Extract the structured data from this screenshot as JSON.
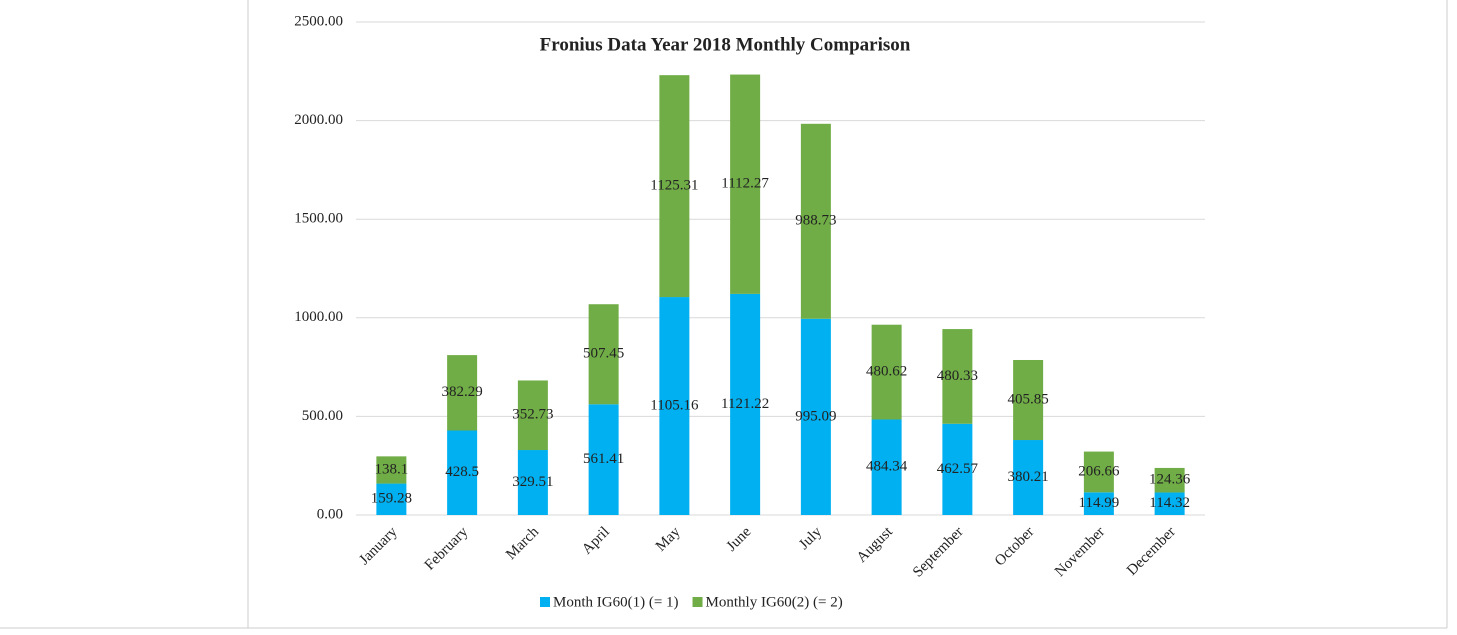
{
  "chart_data": {
    "type": "stacked_bar",
    "title": "Fronius Data Year 2018 Monthly Comparison",
    "categories": [
      "January",
      "February",
      "March",
      "April",
      "May",
      "June",
      "July",
      "August",
      "September",
      "October",
      "November",
      "December"
    ],
    "series": [
      {
        "name": "Month IG60(1) (= 1)",
        "color": "#00b0f0",
        "values": [
          159.28,
          428.5,
          329.51,
          561.41,
          1105.16,
          1121.22,
          995.09,
          484.34,
          462.57,
          380.21,
          114.99,
          114.32
        ]
      },
      {
        "name": "Monthly IG60(2) (= 2)",
        "color": "#70ad47",
        "values": [
          138.1,
          382.29,
          352.73,
          507.45,
          1125.31,
          1112.27,
          988.73,
          480.62,
          480.33,
          405.85,
          206.66,
          124.36
        ]
      }
    ],
    "ylim": [
      0,
      2500
    ],
    "yticks": [
      {
        "value": 0,
        "label": "0.00"
      },
      {
        "value": 500,
        "label": "500.00"
      },
      {
        "value": 1000,
        "label": "1000.00"
      },
      {
        "value": 1500,
        "label": "1500.00"
      },
      {
        "value": 2000,
        "label": "2000.00"
      },
      {
        "value": 2500,
        "label": "2500.00"
      }
    ],
    "grid": true,
    "legend": "bottom"
  }
}
